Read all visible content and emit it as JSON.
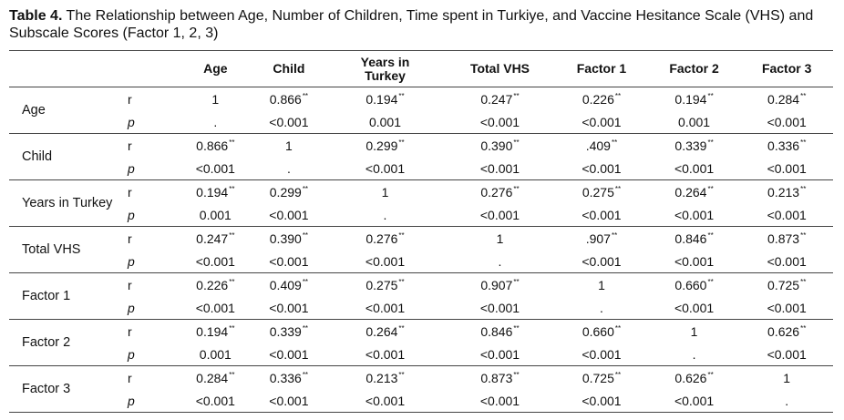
{
  "caption": {
    "label": "Table 4.",
    "text": " The Relationship between Age, Number of Children, Time spent in Turkiye, and Vaccine Hesitance Scale (VHS) and Subscale Scores (Factor 1, 2, 3)"
  },
  "headers": [
    "Age",
    "Child",
    "Years in Turkey",
    "Total VHS",
    "Factor 1",
    "Factor 2",
    "Factor 3"
  ],
  "stat_labels": {
    "r": "r",
    "p": "p"
  },
  "sig_mark": "**",
  "rows": [
    {
      "label": "Age",
      "r": [
        "1",
        "0.866",
        "0.194",
        "0.247",
        "0.226",
        "0.194",
        "0.284"
      ],
      "p": [
        ".",
        "<0.001",
        "0.001",
        "<0.001",
        "<0.001",
        "0.001",
        "<0.001"
      ]
    },
    {
      "label": "Child",
      "r": [
        "0.866",
        "1",
        "0.299",
        "0.390",
        ".409",
        "0.339",
        "0.336"
      ],
      "p": [
        "<0.001",
        ".",
        "<0.001",
        "<0.001",
        "<0.001",
        "<0.001",
        "<0.001"
      ]
    },
    {
      "label": "Years in Turkey",
      "r": [
        "0.194",
        "0.299",
        "1",
        "0.276",
        "0.275",
        "0.264",
        "0.213"
      ],
      "p": [
        "0.001",
        "<0.001",
        ".",
        "<0.001",
        "<0.001",
        "<0.001",
        "<0.001"
      ]
    },
    {
      "label": "Total VHS",
      "r": [
        "0.247",
        "0.390",
        "0.276",
        "1",
        ".907",
        "0.846",
        "0.873"
      ],
      "p": [
        "<0.001",
        "<0.001",
        "<0.001",
        ".",
        "<0.001",
        "<0.001",
        "<0.001"
      ]
    },
    {
      "label": "Factor 1",
      "r": [
        "0.226",
        "0.409",
        "0.275",
        "0.907",
        "1",
        "0.660",
        "0.725"
      ],
      "p": [
        "<0.001",
        "<0.001",
        "<0.001",
        "<0.001",
        ".",
        "<0.001",
        "<0.001"
      ]
    },
    {
      "label": "Factor 2",
      "r": [
        "0.194",
        "0.339",
        "0.264",
        "0.846",
        "0.660",
        "1",
        "0.626"
      ],
      "p": [
        "0.001",
        "<0.001",
        "<0.001",
        "<0.001",
        "<0.001",
        ".",
        "<0.001"
      ]
    },
    {
      "label": "Factor 3",
      "r": [
        "0.284",
        "0.336",
        "0.213",
        "0.873",
        "0.725",
        "0.626",
        "1"
      ],
      "p": [
        "<0.001",
        "<0.001",
        "<0.001",
        "<0.001",
        "<0.001",
        "<0.001",
        "."
      ]
    }
  ]
}
